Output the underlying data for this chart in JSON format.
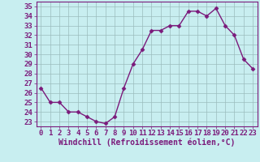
{
  "x": [
    0,
    1,
    2,
    3,
    4,
    5,
    6,
    7,
    8,
    9,
    10,
    11,
    12,
    13,
    14,
    15,
    16,
    17,
    18,
    19,
    20,
    21,
    22,
    23
  ],
  "y": [
    26.5,
    25.0,
    25.0,
    24.0,
    24.0,
    23.5,
    23.0,
    22.8,
    23.5,
    26.5,
    29.0,
    30.5,
    32.5,
    32.5,
    33.0,
    33.0,
    34.5,
    34.5,
    34.0,
    34.8,
    33.0,
    32.0,
    29.5,
    28.5
  ],
  "line_color": "#7b1a7b",
  "marker": "D",
  "marker_size": 2.5,
  "bg_color": "#c8eef0",
  "grid_color": "#9bbcbd",
  "xlabel": "Windchill (Refroidissement éolien,°C)",
  "ylim": [
    22.5,
    35.5
  ],
  "xlim": [
    -0.5,
    23.5
  ],
  "yticks": [
    23,
    24,
    25,
    26,
    27,
    28,
    29,
    30,
    31,
    32,
    33,
    34,
    35
  ],
  "xticks": [
    0,
    1,
    2,
    3,
    4,
    5,
    6,
    7,
    8,
    9,
    10,
    11,
    12,
    13,
    14,
    15,
    16,
    17,
    18,
    19,
    20,
    21,
    22,
    23
  ],
  "font_color": "#7b1a7b",
  "tick_font_size": 6.5,
  "label_font_size": 7.0,
  "line_width": 1.0
}
